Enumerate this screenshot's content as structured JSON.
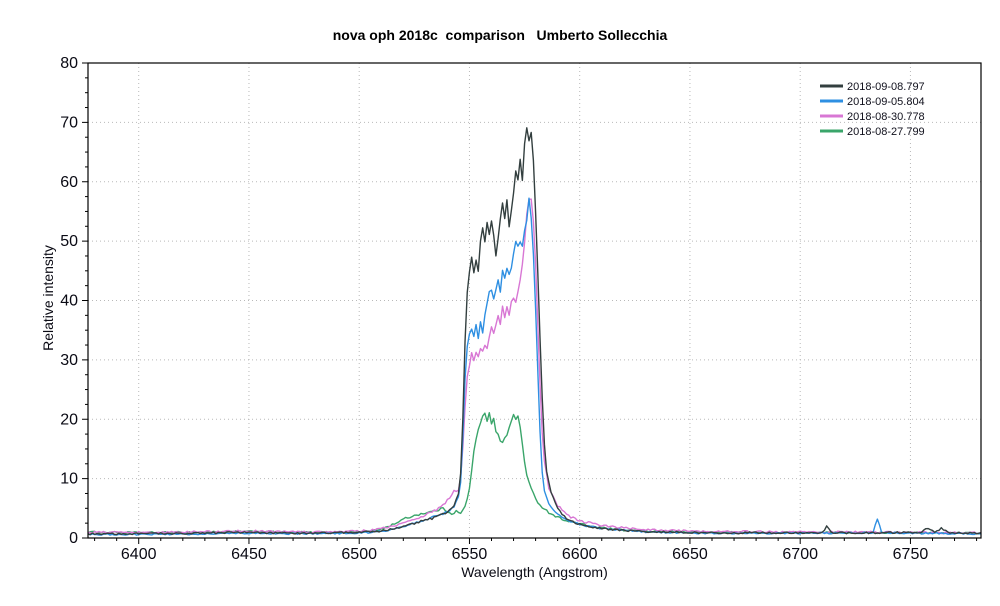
{
  "chart_data": {
    "type": "line",
    "title": "nova oph 2018c  comparison   Umberto Sollecchia",
    "xlabel": "Wavelength (Angstrom)",
    "ylabel": "Relative intensity",
    "xlim": [
      6377,
      6782
    ],
    "ylim": [
      0,
      80
    ],
    "x_ticks_major": [
      6400,
      6450,
      6500,
      6550,
      6600,
      6650,
      6700,
      6750
    ],
    "x_tick_minor_step": 10,
    "y_ticks_major": [
      0,
      10,
      20,
      30,
      40,
      50,
      60,
      70,
      80
    ],
    "y_tick_minor_step": 2.5,
    "grid": {
      "style": "dotted",
      "on": "major-ticks",
      "color": "#b9b9b9"
    },
    "frame_color": "#000000",
    "background": "#ffffff",
    "tick_label_color": "#0a0a14",
    "legend": {
      "position": "top-right",
      "text_color": "#10101c"
    },
    "series": [
      {
        "name": "2018-09-08.797",
        "color": "#333f3f",
        "noise": 0.14,
        "points": [
          [
            6377,
            0.7
          ],
          [
            6395,
            0.7
          ],
          [
            6410,
            0.75
          ],
          [
            6425,
            0.8
          ],
          [
            6440,
            0.9
          ],
          [
            6450,
            1.0
          ],
          [
            6460,
            0.85
          ],
          [
            6475,
            0.8
          ],
          [
            6490,
            0.9
          ],
          [
            6500,
            1.0
          ],
          [
            6508,
            1.1
          ],
          [
            6515,
            1.5
          ],
          [
            6522,
            2.2
          ],
          [
            6528,
            2.8
          ],
          [
            6533,
            3.3
          ],
          [
            6538,
            4.0
          ],
          [
            6541,
            4.6
          ],
          [
            6543,
            5.5
          ],
          [
            6545,
            7.5
          ],
          [
            6546,
            11
          ],
          [
            6547,
            20
          ],
          [
            6548,
            33
          ],
          [
            6549,
            41
          ],
          [
            6550,
            44.5
          ],
          [
            6551,
            47
          ],
          [
            6552,
            45
          ],
          [
            6553,
            47.5
          ],
          [
            6554,
            45.5
          ],
          [
            6555,
            49.5
          ],
          [
            6556,
            51.5
          ],
          [
            6557,
            49.5
          ],
          [
            6558,
            52.5
          ],
          [
            6559,
            50.5
          ],
          [
            6560,
            53.5
          ],
          [
            6561,
            51.5
          ],
          [
            6562,
            48
          ],
          [
            6563,
            51
          ],
          [
            6564,
            54.5
          ],
          [
            6565,
            56.5
          ],
          [
            6566,
            54.5
          ],
          [
            6567,
            56.5
          ],
          [
            6568,
            53
          ],
          [
            6569,
            55.5
          ],
          [
            6570,
            58.5
          ],
          [
            6571,
            61.5
          ],
          [
            6572,
            59.5
          ],
          [
            6573,
            63.5
          ],
          [
            6574,
            60.5
          ],
          [
            6575,
            65.5
          ],
          [
            6576,
            68.5
          ],
          [
            6577,
            66
          ],
          [
            6578,
            68
          ],
          [
            6579,
            63
          ],
          [
            6580,
            55
          ],
          [
            6581,
            45
          ],
          [
            6582,
            34
          ],
          [
            6583,
            24
          ],
          [
            6584,
            16
          ],
          [
            6585,
            11.5
          ],
          [
            6587,
            7.5
          ],
          [
            6590,
            5
          ],
          [
            6593,
            3.6
          ],
          [
            6597,
            2.7
          ],
          [
            6600,
            2.3
          ],
          [
            6605,
            1.9
          ],
          [
            6610,
            1.6
          ],
          [
            6618,
            1.3
          ],
          [
            6628,
            1.1
          ],
          [
            6640,
            1.0
          ],
          [
            6655,
            0.9
          ],
          [
            6670,
            0.85
          ],
          [
            6685,
            0.9
          ],
          [
            6700,
            0.85
          ],
          [
            6710,
            0.9
          ],
          [
            6712,
            2.0
          ],
          [
            6714,
            0.9
          ],
          [
            6725,
            0.85
          ],
          [
            6740,
            0.9
          ],
          [
            6755,
            1.0
          ],
          [
            6758,
            1.7
          ],
          [
            6761,
            1.0
          ],
          [
            6764,
            1.6
          ],
          [
            6768,
            0.9
          ],
          [
            6782,
            0.8
          ]
        ]
      },
      {
        "name": "2018-09-05.804",
        "color": "#2e8fe2",
        "noise": 0.12,
        "points": [
          [
            6377,
            0.6
          ],
          [
            6400,
            0.6
          ],
          [
            6420,
            0.65
          ],
          [
            6440,
            0.75
          ],
          [
            6450,
            0.8
          ],
          [
            6465,
            0.7
          ],
          [
            6480,
            0.75
          ],
          [
            6495,
            0.8
          ],
          [
            6505,
            0.95
          ],
          [
            6512,
            1.2
          ],
          [
            6518,
            1.7
          ],
          [
            6524,
            2.4
          ],
          [
            6530,
            3.1
          ],
          [
            6536,
            3.8
          ],
          [
            6540,
            4.4
          ],
          [
            6543,
            5.2
          ],
          [
            6545,
            6.8
          ],
          [
            6546,
            9.5
          ],
          [
            6547,
            17
          ],
          [
            6548,
            27
          ],
          [
            6549,
            32
          ],
          [
            6550,
            34
          ],
          [
            6551,
            35.5
          ],
          [
            6552,
            33.5
          ],
          [
            6553,
            35.5
          ],
          [
            6554,
            34
          ],
          [
            6555,
            36
          ],
          [
            6556,
            34.5
          ],
          [
            6557,
            37
          ],
          [
            6558,
            39
          ],
          [
            6559,
            41
          ],
          [
            6560,
            42
          ],
          [
            6561,
            40.5
          ],
          [
            6562,
            41.5
          ],
          [
            6563,
            43
          ],
          [
            6564,
            42
          ],
          [
            6565,
            44.5
          ],
          [
            6566,
            43.5
          ],
          [
            6567,
            45
          ],
          [
            6568,
            44
          ],
          [
            6569,
            46
          ],
          [
            6570,
            48
          ],
          [
            6571,
            50
          ],
          [
            6572,
            48.5
          ],
          [
            6573,
            50.5
          ],
          [
            6574,
            49.5
          ],
          [
            6575,
            51.5
          ],
          [
            6576,
            53.5
          ],
          [
            6577,
            56.5
          ],
          [
            6578,
            54.5
          ],
          [
            6579,
            48
          ],
          [
            6580,
            39
          ],
          [
            6581,
            28
          ],
          [
            6582,
            18
          ],
          [
            6583,
            11
          ],
          [
            6584,
            8
          ],
          [
            6586,
            5.8
          ],
          [
            6590,
            3.9
          ],
          [
            6595,
            2.8
          ],
          [
            6600,
            2.3
          ],
          [
            6605,
            1.9
          ],
          [
            6610,
            1.6
          ],
          [
            6620,
            1.3
          ],
          [
            6630,
            1.0
          ],
          [
            6645,
            0.85
          ],
          [
            6665,
            0.8
          ],
          [
            6685,
            0.8
          ],
          [
            6705,
            0.8
          ],
          [
            6720,
            0.85
          ],
          [
            6733,
            0.9
          ],
          [
            6735,
            3.2
          ],
          [
            6737,
            0.9
          ],
          [
            6752,
            0.8
          ],
          [
            6770,
            0.75
          ],
          [
            6782,
            0.7
          ]
        ]
      },
      {
        "name": "2018-08-30.778",
        "color": "#d877d4",
        "noise": 0.15,
        "points": [
          [
            6377,
            0.95
          ],
          [
            6400,
            0.95
          ],
          [
            6420,
            1.0
          ],
          [
            6440,
            1.1
          ],
          [
            6450,
            1.2
          ],
          [
            6465,
            1.05
          ],
          [
            6480,
            1.0
          ],
          [
            6495,
            1.1
          ],
          [
            6505,
            1.3
          ],
          [
            6512,
            1.7
          ],
          [
            6518,
            2.3
          ],
          [
            6524,
            3.0
          ],
          [
            6530,
            3.9
          ],
          [
            6535,
            4.8
          ],
          [
            6539,
            5.8
          ],
          [
            6541,
            6.8
          ],
          [
            6543,
            8.2
          ],
          [
            6544,
            7.6
          ],
          [
            6545,
            8.0
          ],
          [
            6546,
            10
          ],
          [
            6547,
            15
          ],
          [
            6548,
            22
          ],
          [
            6549,
            27.5
          ],
          [
            6550,
            29.5
          ],
          [
            6551,
            31
          ],
          [
            6552,
            29.5
          ],
          [
            6553,
            31.5
          ],
          [
            6554,
            30.5
          ],
          [
            6555,
            32
          ],
          [
            6556,
            31
          ],
          [
            6557,
            33
          ],
          [
            6558,
            32
          ],
          [
            6559,
            34
          ],
          [
            6560,
            35.5
          ],
          [
            6561,
            34.5
          ],
          [
            6562,
            36
          ],
          [
            6563,
            37.5
          ],
          [
            6564,
            36.5
          ],
          [
            6565,
            38.5
          ],
          [
            6566,
            37.5
          ],
          [
            6567,
            39
          ],
          [
            6568,
            38
          ],
          [
            6569,
            40
          ],
          [
            6570,
            41
          ],
          [
            6571,
            40
          ],
          [
            6572,
            42
          ],
          [
            6573,
            44
          ],
          [
            6574,
            46.5
          ],
          [
            6575,
            50
          ],
          [
            6576,
            54
          ],
          [
            6577,
            56.5
          ],
          [
            6578,
            57
          ],
          [
            6579,
            53.5
          ],
          [
            6580,
            46
          ],
          [
            6581,
            36
          ],
          [
            6582,
            26
          ],
          [
            6583,
            18
          ],
          [
            6584,
            13
          ],
          [
            6586,
            8.5
          ],
          [
            6590,
            5.5
          ],
          [
            6595,
            3.7
          ],
          [
            6600,
            2.9
          ],
          [
            6605,
            2.5
          ],
          [
            6610,
            2.1
          ],
          [
            6620,
            1.7
          ],
          [
            6630,
            1.4
          ],
          [
            6645,
            1.2
          ],
          [
            6665,
            1.1
          ],
          [
            6685,
            1.05
          ],
          [
            6705,
            1.0
          ],
          [
            6725,
            1.0
          ],
          [
            6745,
            0.95
          ],
          [
            6765,
            0.9
          ],
          [
            6782,
            0.85
          ]
        ]
      },
      {
        "name": "2018-08-27.799",
        "color": "#3aa56a",
        "noise": 0.13,
        "points": [
          [
            6377,
            1.0
          ],
          [
            6400,
            0.9
          ],
          [
            6420,
            0.95
          ],
          [
            6440,
            1.05
          ],
          [
            6450,
            1.1
          ],
          [
            6465,
            1.0
          ],
          [
            6480,
            0.95
          ],
          [
            6495,
            1.0
          ],
          [
            6503,
            1.1
          ],
          [
            6508,
            1.3
          ],
          [
            6513,
            1.9
          ],
          [
            6517,
            2.6
          ],
          [
            6521,
            3.3
          ],
          [
            6526,
            3.9
          ],
          [
            6531,
            4.3
          ],
          [
            6535,
            4.6
          ],
          [
            6538,
            5.0
          ],
          [
            6540,
            4.5
          ],
          [
            6542,
            4.1
          ],
          [
            6544,
            4.5
          ],
          [
            6546,
            4.1
          ],
          [
            6548,
            5.3
          ],
          [
            6549,
            6.5
          ],
          [
            6550,
            8.5
          ],
          [
            6551,
            11.5
          ],
          [
            6552,
            14.5
          ],
          [
            6553,
            16.5
          ],
          [
            6554,
            18
          ],
          [
            6555,
            19.3
          ],
          [
            6556,
            20.3
          ],
          [
            6557,
            21.2
          ],
          [
            6558,
            19.8
          ],
          [
            6559,
            21.3
          ],
          [
            6560,
            19.4
          ],
          [
            6561,
            20.2
          ],
          [
            6562,
            18.2
          ],
          [
            6563,
            17.2
          ],
          [
            6564,
            16.4
          ],
          [
            6565,
            16.2
          ],
          [
            6566,
            16.6
          ],
          [
            6567,
            17.6
          ],
          [
            6568,
            18.6
          ],
          [
            6569,
            19.6
          ],
          [
            6570,
            20.6
          ],
          [
            6571,
            19.9
          ],
          [
            6572,
            20.5
          ],
          [
            6573,
            18.8
          ],
          [
            6574,
            15.8
          ],
          [
            6575,
            13
          ],
          [
            6576,
            10.5
          ],
          [
            6578,
            8.2
          ],
          [
            6580,
            6.6
          ],
          [
            6582,
            5.6
          ],
          [
            6584,
            4.9
          ],
          [
            6586,
            4.3
          ],
          [
            6590,
            3.5
          ],
          [
            6595,
            2.8
          ],
          [
            6600,
            2.4
          ],
          [
            6605,
            2.0
          ],
          [
            6610,
            1.7
          ],
          [
            6620,
            1.3
          ],
          [
            6632,
            1.1
          ],
          [
            6650,
            1.0
          ],
          [
            6670,
            0.95
          ],
          [
            6690,
            0.9
          ],
          [
            6710,
            0.9
          ],
          [
            6730,
            0.9
          ],
          [
            6750,
            0.9
          ],
          [
            6770,
            0.85
          ],
          [
            6782,
            0.8
          ]
        ]
      }
    ]
  }
}
